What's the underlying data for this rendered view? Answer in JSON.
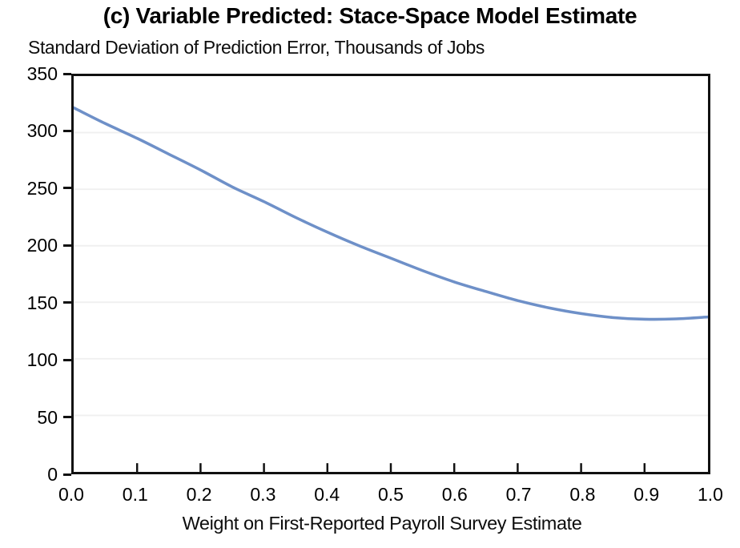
{
  "chart": {
    "title": "(c) Variable Predicted: Stace-Space Model Estimate",
    "y_axis_title": "Standard Deviation of Prediction Error, Thousands of Jobs",
    "x_axis_title": "Weight on First-Reported Payroll Survey Estimate"
  },
  "chart_data": {
    "type": "line",
    "title": "(c) Variable Predicted: Stace-Space Model Estimate",
    "ylabel": "Standard Deviation of Prediction Error, Thousands of Jobs",
    "xlabel": "Weight on First-Reported Payroll Survey Estimate",
    "x": [
      0.0,
      0.05,
      0.1,
      0.15,
      0.2,
      0.25,
      0.3,
      0.35,
      0.4,
      0.45,
      0.5,
      0.55,
      0.6,
      0.65,
      0.7,
      0.75,
      0.8,
      0.85,
      0.9,
      0.95,
      1.0
    ],
    "series": [
      {
        "name": "Standard Deviation of Prediction Error",
        "values": [
          322,
          308,
          295,
          281,
          267,
          252,
          239,
          225,
          212,
          200,
          189,
          178,
          168,
          159.5,
          151.5,
          145,
          140,
          136.5,
          135,
          135.3,
          137
        ]
      }
    ],
    "xlim": [
      0.0,
      1.0
    ],
    "ylim": [
      0,
      350
    ],
    "x_ticks": [
      0.0,
      0.1,
      0.2,
      0.3,
      0.4,
      0.5,
      0.6,
      0.7,
      0.8,
      0.9,
      1.0
    ],
    "y_ticks": [
      0,
      50,
      100,
      150,
      200,
      250,
      300,
      350
    ],
    "grid": true,
    "legend": "none",
    "line_color": "#6E90C8",
    "gridline_color": "#f0f0f0",
    "axis_color": "#111111"
  }
}
